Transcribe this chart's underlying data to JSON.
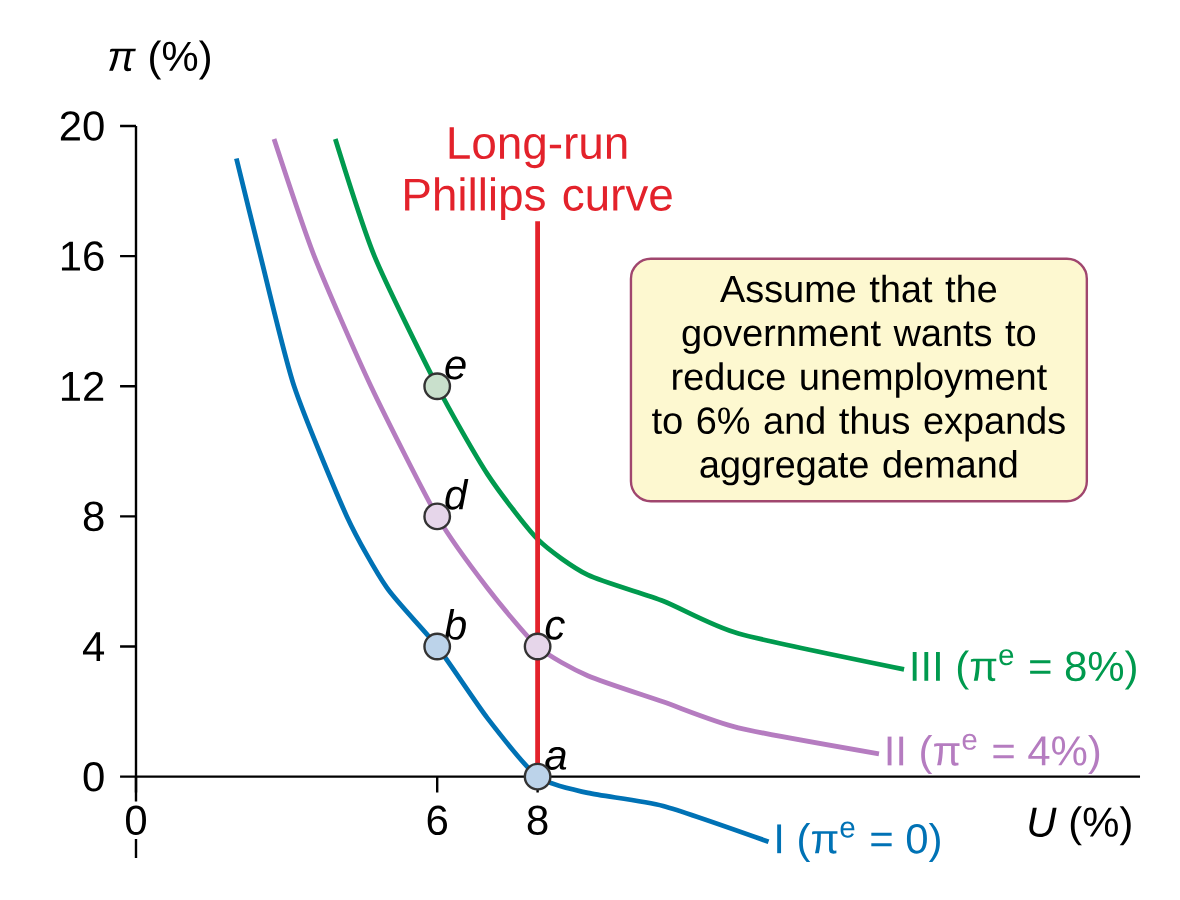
{
  "chart_data": {
    "type": "line",
    "xlabel": "*U* (%)",
    "ylabel": "*π* (%)",
    "xlim": [
      0,
      20
    ],
    "ylim": [
      -2.5,
      20
    ],
    "xticks": [
      0,
      6,
      8
    ],
    "yticks": [
      0,
      4,
      8,
      12,
      16,
      20
    ],
    "grid": false,
    "marker": "none",
    "series": [
      {
        "name": "I (π$^{e}$ = 0)",
        "color": "#0072b5",
        "x": [
          2.0,
          2.48,
          3.15,
          4.2,
          5.0,
          6,
          7,
          8,
          9,
          10.5,
          12.6
        ],
        "values": [
          19.0,
          16,
          12,
          8,
          5.8,
          4,
          1.8,
          0,
          -0.5,
          -0.9,
          -2.0
        ]
      },
      {
        "name": "II (π$^{e}$ = 4%)",
        "color": "#b57cc0",
        "x": [
          2.75,
          3.55,
          4.68,
          6,
          7,
          8,
          9,
          10.5,
          12,
          14.8
        ],
        "values": [
          19.6,
          16,
          12,
          8,
          5.8,
          4,
          3.1,
          2.3,
          1.5,
          0.7
        ]
      },
      {
        "name": "III (π$^{e}$ = 8%)",
        "color": "#009a4e",
        "x": [
          3.97,
          4.75,
          6,
          7,
          8,
          9,
          10.5,
          12,
          15.3
        ],
        "values": [
          19.6,
          16,
          12,
          9.3,
          7.3,
          6.2,
          5.4,
          4.4,
          3.3
        ]
      },
      {
        "type": "scatter",
        "marker": "circle",
        "x": [
          8,
          6,
          8,
          6,
          6
        ],
        "values": [
          0,
          4,
          4,
          8,
          12
        ],
        "colors": [
          "#bcd3ea",
          "#bcd3ea",
          "#e6d6ea",
          "#e6d6ea",
          "#c9e0cc"
        ],
        "value_labels": [
          "a",
          "b",
          "c",
          "d",
          "e"
        ]
      }
    ],
    "ref_lines": [
      {
        "axis": "x",
        "value": 8,
        "label": "Long-run Phillips curve",
        "color": "#e3222b"
      }
    ],
    "annotations": [
      "Assume that the government wants to reduce unemployment to 6% and thus expands aggregate demand"
    ]
  }
}
